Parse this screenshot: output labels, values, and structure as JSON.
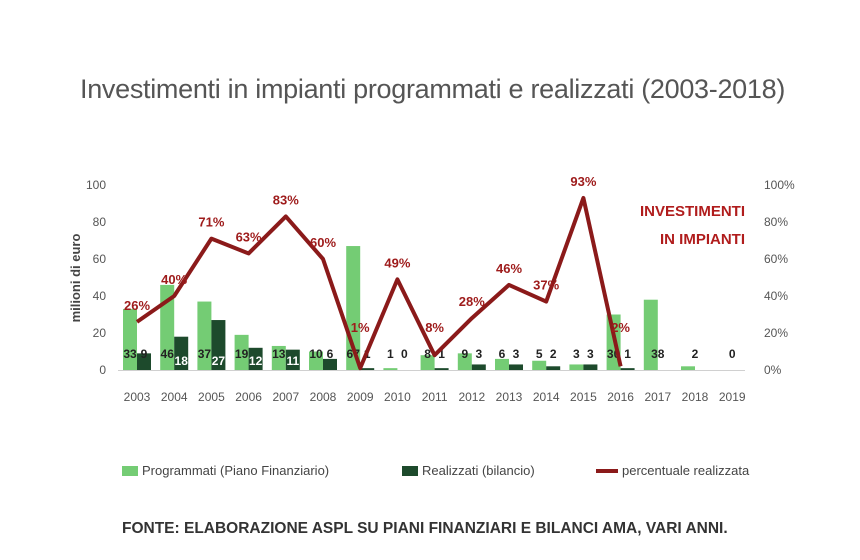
{
  "title": "Investimenti in impianti programmati e realizzati (2003-2018)",
  "source": "FONTE: ELABORAZIONE ASPL SU PIANI FINANZIARI E BILANCI AMA, VARI ANNI.",
  "chart_data": {
    "type": "bar",
    "categories": [
      "2003",
      "2004",
      "2005",
      "2006",
      "2007",
      "2008",
      "2009",
      "2010",
      "2011",
      "2012",
      "2013",
      "2014",
      "2015",
      "2016",
      "2017",
      "2018",
      "2019"
    ],
    "series": [
      {
        "name": "Programmati (Piano Finanziario)",
        "type": "bar",
        "axis": "left",
        "color": "#74cc74",
        "values": [
          33,
          46,
          37,
          19,
          13,
          10,
          67,
          1,
          8,
          9,
          6,
          5,
          3,
          30,
          38,
          2,
          0
        ],
        "labels": [
          "33",
          "46",
          "37",
          "19",
          "13",
          "10",
          "67",
          "1",
          "8",
          "9",
          "6",
          "5",
          "3",
          "30",
          "38",
          "2",
          "0"
        ]
      },
      {
        "name": "Realizzati (bilancio)",
        "type": "bar",
        "axis": "left",
        "color": "#1d4a2c",
        "values": [
          9,
          18,
          27,
          12,
          11,
          6,
          1,
          0,
          1,
          3,
          3,
          2,
          3,
          1,
          null,
          null,
          null
        ],
        "labels": [
          "9",
          "18",
          "27",
          "12",
          "11",
          "6",
          "1",
          "0",
          "1",
          "3",
          "3",
          "2",
          "3",
          "1",
          "",
          "",
          ""
        ]
      },
      {
        "name": "percentuale realizzata",
        "type": "line",
        "axis": "right",
        "color": "#8b1a1a",
        "values": [
          26,
          40,
          71,
          63,
          83,
          60,
          1,
          49,
          8,
          28,
          46,
          37,
          93,
          2,
          null,
          null,
          null
        ],
        "labels": [
          "26%",
          "40%",
          "71%",
          "63%",
          "83%",
          "60%",
          "1%",
          "49%",
          "8%",
          "28%",
          "46%",
          "37%",
          "93%",
          "2%",
          "",
          "",
          ""
        ]
      }
    ],
    "ylabel": "milioni di euro",
    "ylim": [
      0,
      100
    ],
    "yticks": [
      "0",
      "20",
      "40",
      "60",
      "80",
      "100"
    ],
    "y2lim": [
      0,
      100
    ],
    "y2ticks": [
      "0%",
      "20%",
      "40%",
      "60%",
      "80%",
      "100%"
    ],
    "annotation": [
      "INVESTIMENTI",
      "IN IMPIANTI"
    ],
    "grid": false,
    "legend_position": "bottom"
  },
  "colors": {
    "programmati": "#74cc74",
    "realizzati": "#1d4a2c",
    "percentuale": "#8b1a1a",
    "annotation": "#b01c1c"
  }
}
